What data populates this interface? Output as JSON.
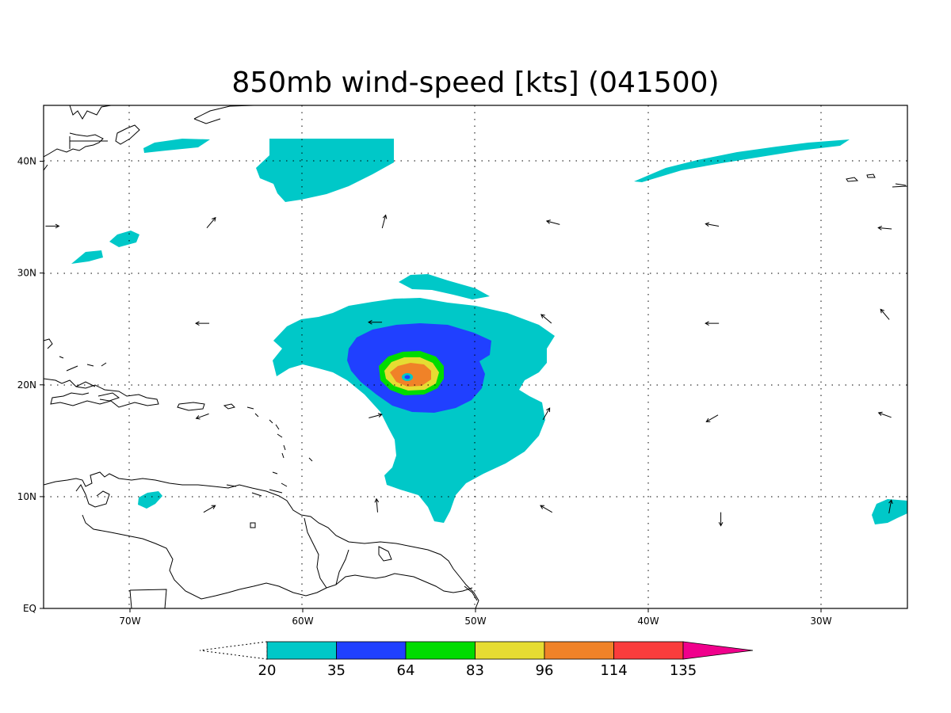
{
  "title": "850mb wind-speed [kts] (041500)",
  "map": {
    "lon_range": [
      -75,
      -25
    ],
    "lat_range": [
      0,
      45
    ],
    "x_ticks": [
      {
        "lon": -70,
        "label": "70W"
      },
      {
        "lon": -60,
        "label": "60W"
      },
      {
        "lon": -50,
        "label": "50W"
      },
      {
        "lon": -40,
        "label": "40W"
      },
      {
        "lon": -30,
        "label": "30W"
      }
    ],
    "y_ticks": [
      {
        "lat": 0,
        "label": "EQ"
      },
      {
        "lat": 10,
        "label": "10N"
      },
      {
        "lat": 20,
        "label": "20N"
      },
      {
        "lat": 30,
        "label": "30N"
      },
      {
        "lat": 40,
        "label": "40N"
      }
    ],
    "grid": true,
    "storm_center": {
      "lon": -53.9,
      "lat": 20.7
    }
  },
  "colorbar": {
    "levels": [
      "20",
      "35",
      "64",
      "83",
      "96",
      "114",
      "135"
    ],
    "colors": [
      "#00c8c8",
      "#2040ff",
      "#00dc00",
      "#e6dc32",
      "#f08228",
      "#fa3c3c",
      "#f0008c"
    ],
    "below_min": "open",
    "above_max": "#f0008c"
  },
  "wind_vectors_deg": [
    {
      "lon": -74.5,
      "lat": 34.2,
      "dir": 0
    },
    {
      "lon": -65.3,
      "lat": 34.5,
      "dir": 50
    },
    {
      "lon": -55.3,
      "lat": 34.6,
      "dir": 75
    },
    {
      "lon": -45.5,
      "lat": 34.5,
      "dir": 165
    },
    {
      "lon": -36.3,
      "lat": 34.3,
      "dir": 170
    },
    {
      "lon": -26.3,
      "lat": 34.0,
      "dir": 175
    },
    {
      "lon": -65.8,
      "lat": 25.5,
      "dir": 180
    },
    {
      "lon": -55.8,
      "lat": 25.6,
      "dir": 180
    },
    {
      "lon": -45.9,
      "lat": 25.9,
      "dir": 140
    },
    {
      "lon": -36.3,
      "lat": 25.5,
      "dir": 180
    },
    {
      "lon": -26.3,
      "lat": 26.3,
      "dir": 130
    },
    {
      "lon": -65.8,
      "lat": 17.2,
      "dir": 200
    },
    {
      "lon": -55.8,
      "lat": 17.2,
      "dir": 15
    },
    {
      "lon": -45.9,
      "lat": 17.4,
      "dir": 60
    },
    {
      "lon": -36.3,
      "lat": 17.0,
      "dir": 210
    },
    {
      "lon": -26.3,
      "lat": 17.3,
      "dir": 160
    },
    {
      "lon": -65.4,
      "lat": 8.9,
      "dir": 30
    },
    {
      "lon": -55.7,
      "lat": 9.2,
      "dir": 95
    },
    {
      "lon": -45.9,
      "lat": 8.9,
      "dir": 150
    },
    {
      "lon": -35.8,
      "lat": 8.0,
      "dir": 270
    },
    {
      "lon": -26.0,
      "lat": 9.1,
      "dir": 80
    }
  ]
}
